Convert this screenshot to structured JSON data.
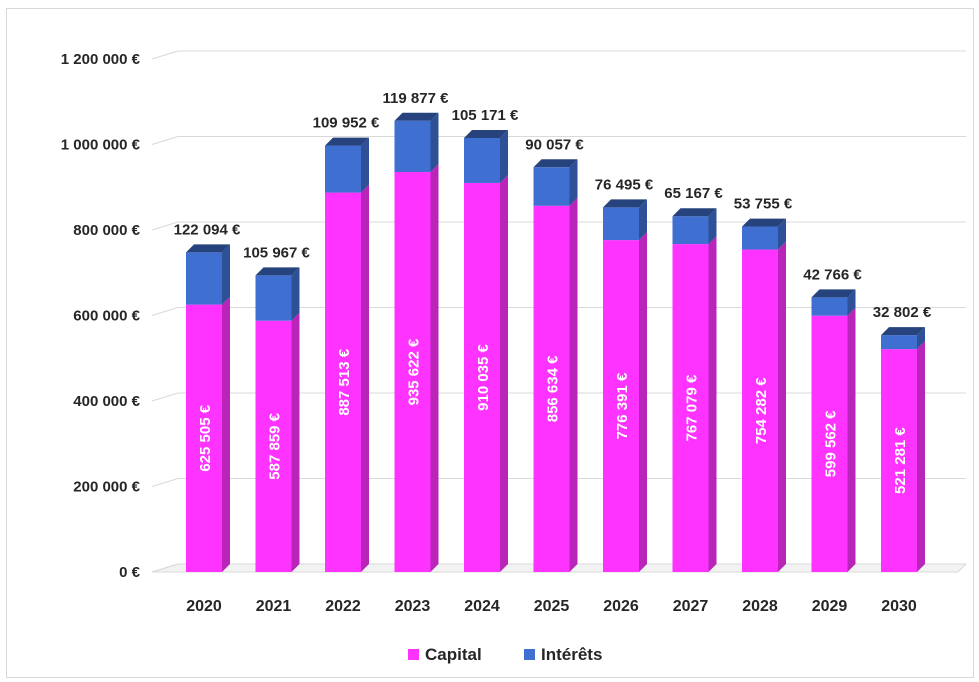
{
  "chart_data": {
    "type": "bar",
    "stacked": true,
    "style": "3d-column",
    "categories": [
      "2020",
      "2021",
      "2022",
      "2023",
      "2024",
      "2025",
      "2026",
      "2027",
      "2028",
      "2029",
      "2030"
    ],
    "series": [
      {
        "name": "Capital",
        "color": "#ff33ff",
        "values": [
          625505,
          587859,
          887513,
          935622,
          910035,
          856634,
          776391,
          767079,
          754282,
          599562,
          521281
        ],
        "labels": [
          "625 505 €",
          "587 859 €",
          "887 513 €",
          "935 622 €",
          "910 035 €",
          "856 634 €",
          "776 391 €",
          "767 079 €",
          "754 282 €",
          "599 562 €",
          "521 281 €"
        ]
      },
      {
        "name": "Intérêts",
        "color": "#3f6fd0",
        "values": [
          122094,
          105967,
          109952,
          119877,
          105171,
          90057,
          76495,
          65167,
          53755,
          42766,
          32802
        ],
        "labels": [
          "122 094 €",
          "105 967 €",
          "109 952 €",
          "119 877 €",
          "105 171 €",
          "90 057 €",
          "76 495 €",
          "65 167 €",
          "53 755 €",
          "42 766 €",
          "32 802 €"
        ]
      }
    ],
    "yticks": [
      "0 €",
      "200 000 €",
      "400 000 €",
      "600 000 €",
      "800 000 €",
      "1 000 000 €",
      "1 200 000 €"
    ],
    "ylim": [
      0,
      1200000
    ],
    "grid": true,
    "legend": "bottom"
  }
}
